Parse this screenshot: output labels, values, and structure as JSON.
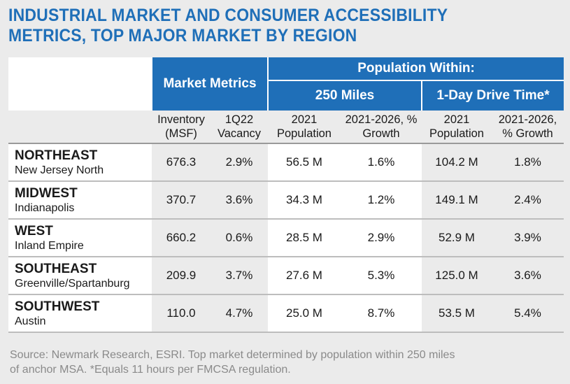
{
  "title_lines": [
    "INDUSTRIAL MARKET AND CONSUMER ACCESSIBILITY",
    "METRICS, TOP MAJOR MARKET BY REGION"
  ],
  "chart_data": {
    "type": "table",
    "group_headers": {
      "market_metrics": "Market Metrics",
      "population_within": "Population Within:",
      "miles_250": "250 Miles",
      "drive_time": "1-Day Drive Time*"
    },
    "columns": [
      "Inventory (MSF)",
      "1Q22 Vacancy",
      "2021 Population",
      "2021-2026, % Growth",
      "2021 Population",
      "2021-2026, % Growth"
    ],
    "column_lines": [
      [
        "Inventory",
        "(MSF)"
      ],
      [
        "1Q22",
        "Vacancy"
      ],
      [
        "2021",
        "Population"
      ],
      [
        "2021-2026, %",
        "Growth"
      ],
      [
        "2021",
        "Population"
      ],
      [
        "2021-2026,",
        "% Growth"
      ]
    ],
    "rows": [
      {
        "region": "NORTHEAST",
        "market": "New Jersey North",
        "values": [
          "676.3",
          "2.9%",
          "56.5 M",
          "1.6%",
          "104.2 M",
          "1.8%"
        ]
      },
      {
        "region": "MIDWEST",
        "market": "Indianapolis",
        "values": [
          "370.7",
          "3.6%",
          "34.3 M",
          "1.2%",
          "149.1 M",
          "2.4%"
        ]
      },
      {
        "region": "WEST",
        "market": "Inland Empire",
        "values": [
          "660.2",
          "0.6%",
          "28.5 M",
          "2.9%",
          "52.9 M",
          "3.9%"
        ]
      },
      {
        "region": "SOUTHEAST",
        "market": "Greenville/Spartanburg",
        "values": [
          "209.9",
          "3.7%",
          "27.6 M",
          "5.3%",
          "125.0 M",
          "3.6%"
        ]
      },
      {
        "region": "SOUTHWEST",
        "market": "Austin",
        "values": [
          "110.0",
          "4.7%",
          "25.0 M",
          "8.7%",
          "53.5 M",
          "5.4%"
        ]
      }
    ]
  },
  "footnote_lines": [
    "Source: Newmark Research, ESRI. Top market determined by population within 250 miles",
    "of anchor MSA. *Equals 11 hours per FMCSA regulation."
  ],
  "colors": {
    "accent_blue": "#1f6fb8",
    "background": "#ebebeb",
    "footnote_gray": "#8a8a8a"
  }
}
